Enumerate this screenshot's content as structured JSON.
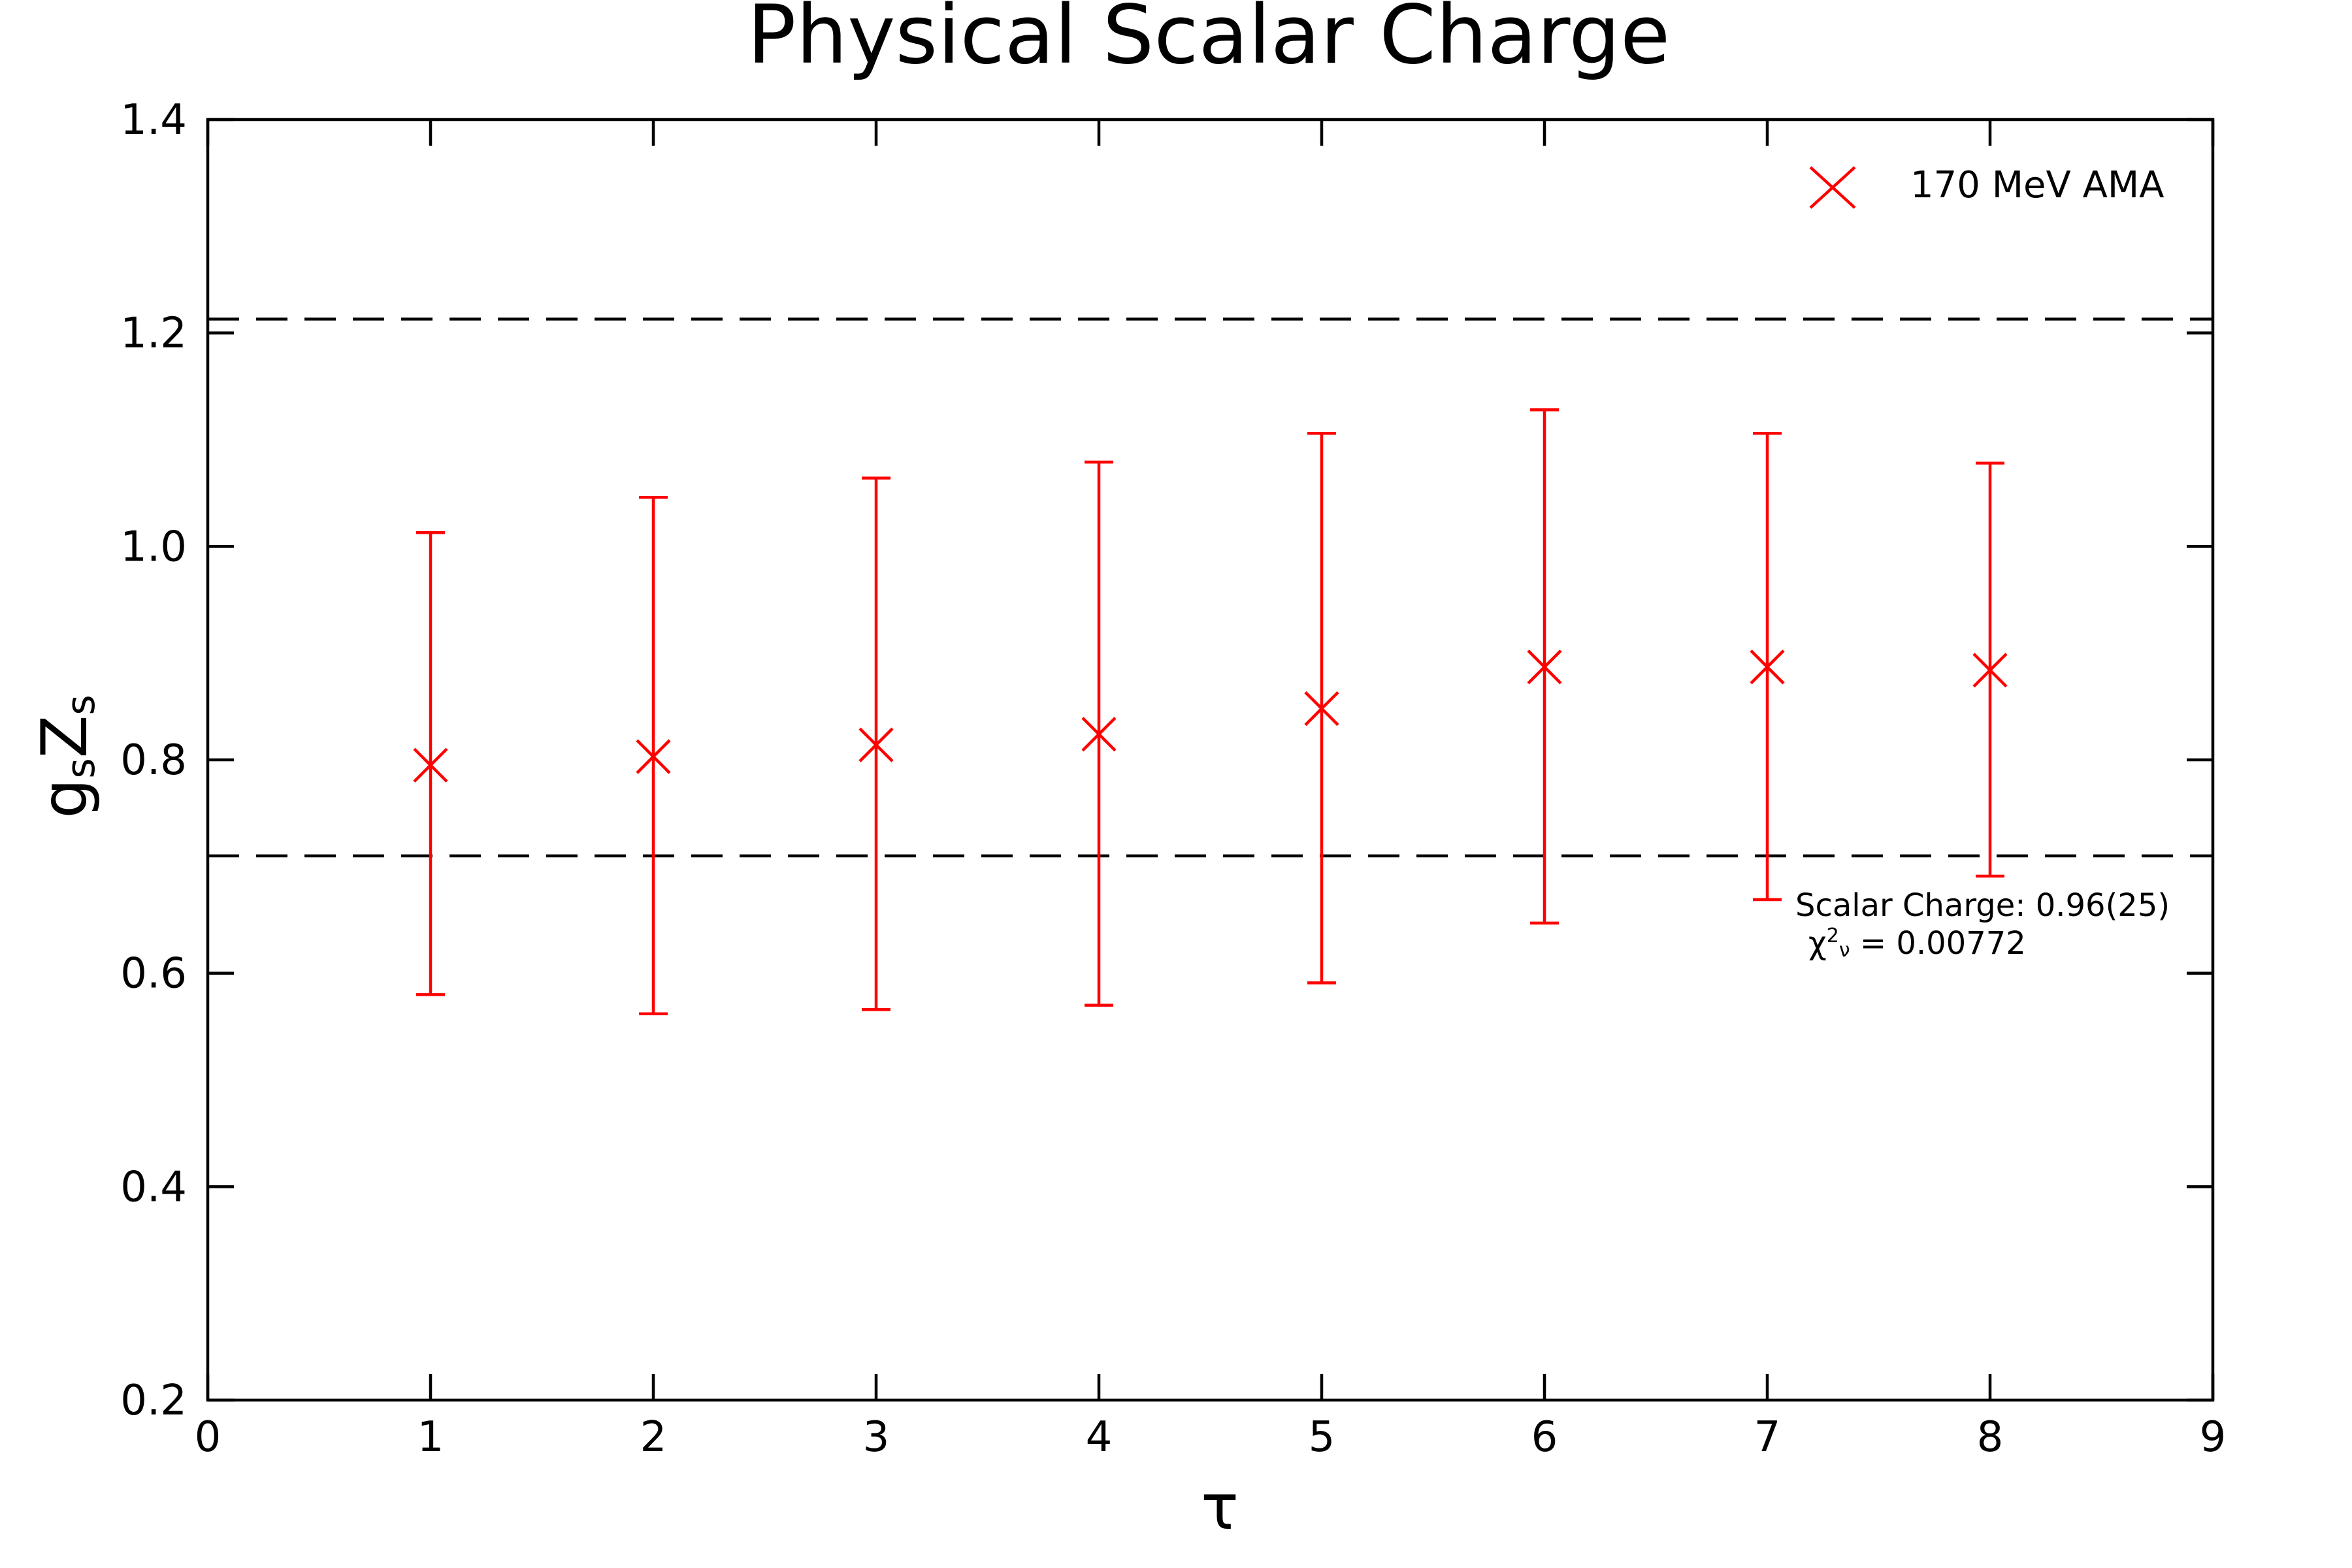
{
  "colors": {
    "series": "#ff0000",
    "axis": "#000000",
    "dashed": "#000000",
    "background": "#ffffff"
  },
  "chart_data": {
    "type": "scatter",
    "title": "Physical Scalar Charge",
    "xlabel": "τ",
    "ylabel": {
      "g": "g",
      "g_sub": "s",
      "z": "Z",
      "z_sub": "s"
    },
    "xlim": [
      0,
      9
    ],
    "ylim": [
      0.2,
      1.4
    ],
    "x_ticks": [
      "0",
      "1",
      "2",
      "3",
      "4",
      "5",
      "6",
      "7",
      "8",
      "9"
    ],
    "y_ticks": [
      "0.2",
      "0.4",
      "0.6",
      "0.8",
      "1.0",
      "1.2",
      "1.4"
    ],
    "grid": false,
    "legend_position": "top-right",
    "series": [
      {
        "name": "170 MeV AMA",
        "marker": "x",
        "x": [
          1,
          2,
          3,
          4,
          5,
          6,
          7,
          8
        ],
        "y": [
          0.795,
          0.803,
          0.814,
          0.824,
          0.848,
          0.887,
          0.887,
          0.884
        ],
        "err_low": [
          0.58,
          0.562,
          0.566,
          0.57,
          0.591,
          0.647,
          0.669,
          0.691
        ],
        "err_high": [
          1.013,
          1.046,
          1.064,
          1.079,
          1.106,
          1.128,
          1.106,
          1.078
        ]
      }
    ],
    "reference_lines": [
      1.213,
      0.71
    ],
    "annotation": {
      "line1": "Scalar Charge: 0.96(25)",
      "chi": "χ",
      "chi_sup": "2",
      "chi_sub": "ν",
      "chi_value": " = 0.00772"
    }
  }
}
